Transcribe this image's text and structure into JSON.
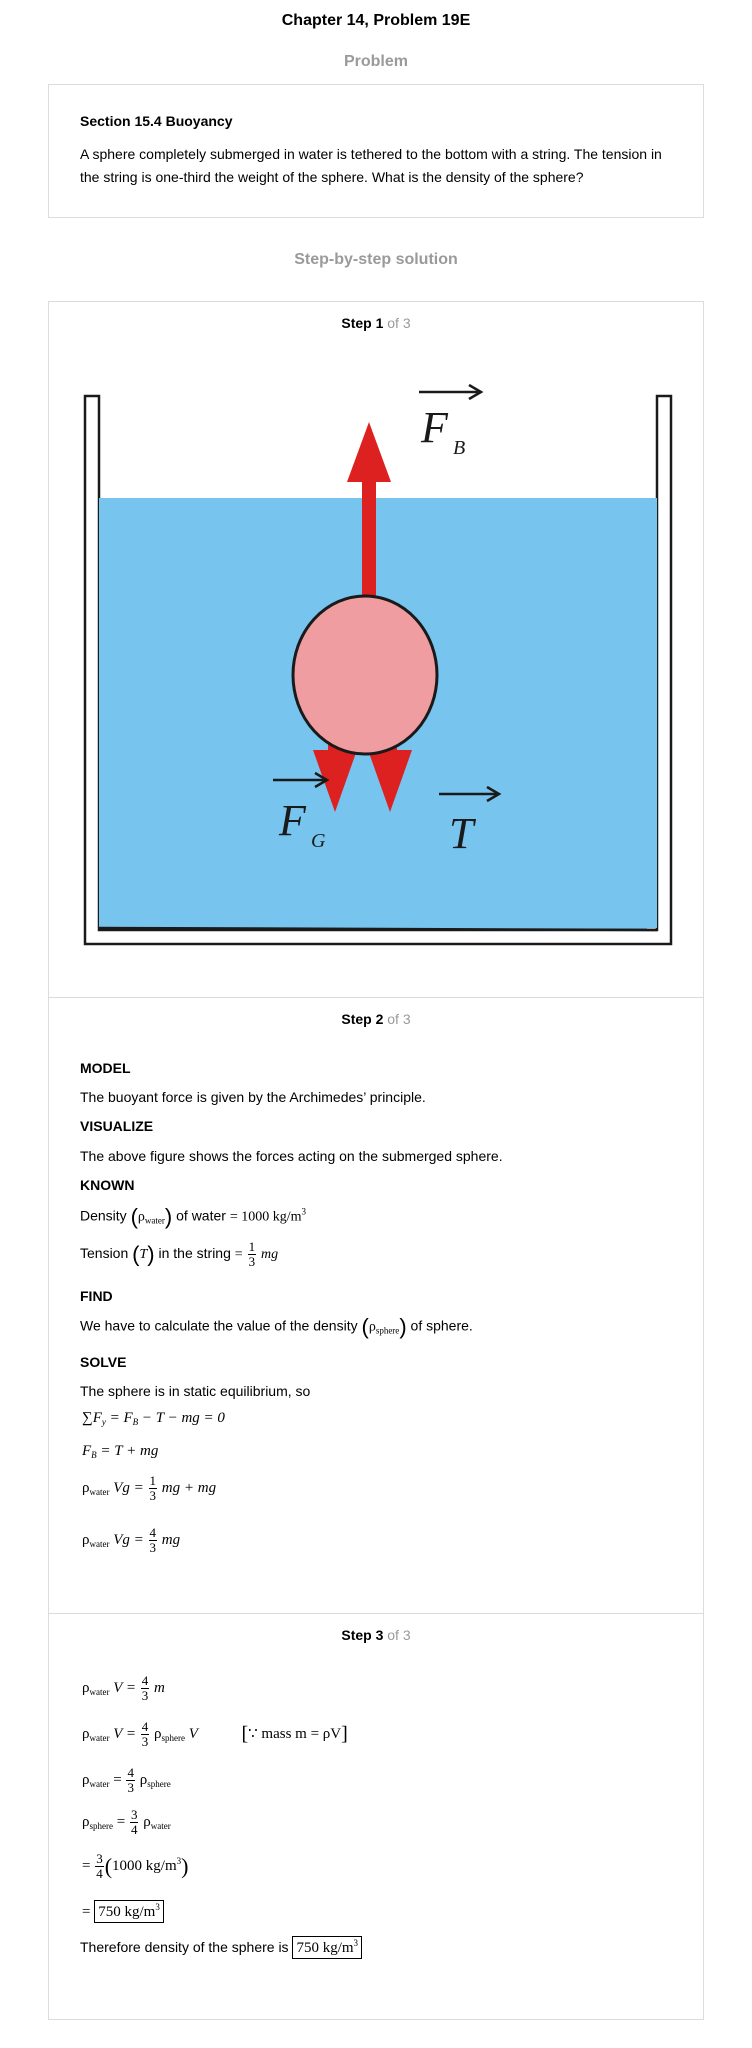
{
  "header": {
    "title": "Chapter 14, Problem 19E"
  },
  "problem": {
    "section_label": "Problem",
    "heading": "Section 15.4 Buoyancy",
    "body": "A sphere completely submerged in water is tethered to the bottom with a string. The tension in the string is one-third the weight of the sphere. What is the density of the sphere?"
  },
  "solution": {
    "section_label": "Step-by-step solution"
  },
  "steps": [
    {
      "label": "Step 1",
      "of": "of 3"
    },
    {
      "label": "Step 2",
      "of": "of 3"
    },
    {
      "label": "Step 3",
      "of": "of 3"
    }
  ],
  "diagram": {
    "force_buoyant": "F",
    "force_buoyant_sub": "B",
    "force_gravity": "F",
    "force_gravity_sub": "G",
    "tension": "T",
    "colors": {
      "water": "#77c4ef",
      "sphere": "#ef9da0",
      "arrow": "#dd2020",
      "outline": "#1a1a1a"
    }
  },
  "step2": {
    "model_label": "MODEL",
    "model_text": "The buoyant force is given by the Archimedes’ principle.",
    "visualize_label": "VISUALIZE",
    "visualize_text": "The above figure shows the forces acting on the submerged sphere.",
    "known_label": "KNOWN",
    "density_text": "Density",
    "density_symbol": "ρ",
    "density_sub": "water",
    "density_of": "of water",
    "density_value": "= 1000 kg/m",
    "density_exp": "3",
    "tension_text": "Tension",
    "tension_symbol": "T",
    "tension_in": "in the string",
    "tension_eq": "=",
    "tension_num": "1",
    "tension_den": "3",
    "tension_mg": "mg",
    "find_label": "FIND",
    "find_text_a": "We have to calculate the value of the density",
    "find_symbol": "ρ",
    "find_sub": "sphere",
    "find_text_b": "of sphere.",
    "solve_label": "SOLVE",
    "solve_text": "The sphere is in static equilibrium, so",
    "eq1_sigma": "∑F",
    "eq1_sub": "y",
    "eq1_rest": "= F",
    "eq1_sub2": "B",
    "eq1_tail": "− T − mg = 0",
    "eq2_lhs": "F",
    "eq2_sub": "B",
    "eq2_rhs": "= T + mg",
    "eq3_rho": "ρ",
    "eq3_sub": "water",
    "eq3_mid": "Vg =",
    "eq3_num": "1",
    "eq3_den": "3",
    "eq3_tail": "mg + mg",
    "eq4_rho": "ρ",
    "eq4_sub": "water",
    "eq4_mid": "Vg =",
    "eq4_num": "4",
    "eq4_den": "3",
    "eq4_tail": "mg"
  },
  "step3": {
    "e1_rho": "ρ",
    "e1_sub": "water",
    "e1_mid": "V =",
    "e1_num": "4",
    "e1_den": "3",
    "e1_tail": "m",
    "e2_rho": "ρ",
    "e2_sub": "water",
    "e2_mid": "V =",
    "e2_num": "4",
    "e2_den": "3",
    "e2_rho2": "ρ",
    "e2_sub2": "sphere",
    "e2_tail": "V",
    "e2_because": "∵ mass m = ρV",
    "e3_rho": "ρ",
    "e3_sub": "water",
    "e3_mid": "=",
    "e3_num": "4",
    "e3_den": "3",
    "e3_rho2": "ρ",
    "e3_sub2": "sphere",
    "e4_rho": "ρ",
    "e4_sub": "sphere",
    "e4_mid": "=",
    "e4_num": "3",
    "e4_den": "4",
    "e4_rho2": "ρ",
    "e4_sub2": "water",
    "e5_eq": "=",
    "e5_num": "3",
    "e5_den": "4",
    "e5_val": "1000 kg/m",
    "e5_exp": "3",
    "e6_eq": "=",
    "e6_val": "750 kg/m",
    "e6_exp": "3",
    "conclusion": "Therefore density of the sphere is",
    "answer": "750 kg/m",
    "answer_exp": "3"
  }
}
